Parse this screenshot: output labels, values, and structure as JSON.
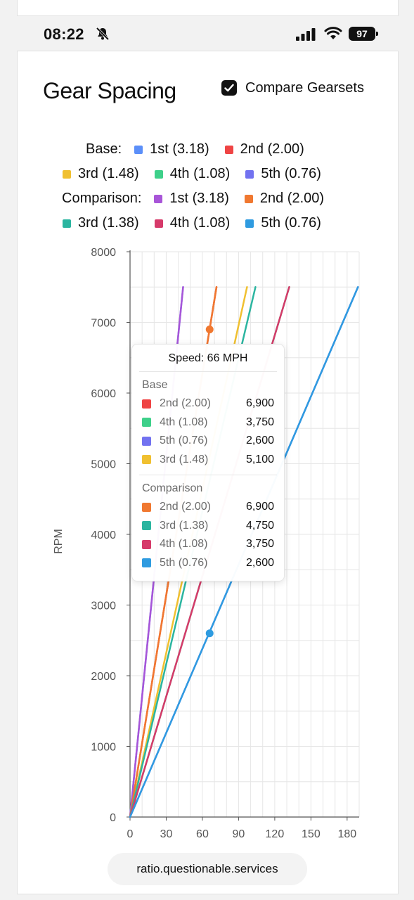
{
  "status": {
    "time": "08:22",
    "battery": "97"
  },
  "title": "Gear Spacing",
  "compare": {
    "label": "Compare Gearsets",
    "checked": true
  },
  "legend": {
    "base_label": "Base:",
    "comparison_label": "Comparison:",
    "base": [
      {
        "label": "1st (3.18)",
        "color": "#5b8ff9"
      },
      {
        "label": "2nd (2.00)",
        "color": "#ef4444"
      },
      {
        "label": "3rd (1.48)",
        "color": "#f0c030"
      },
      {
        "label": "4th (1.08)",
        "color": "#3ed08a"
      },
      {
        "label": "5th (0.76)",
        "color": "#7272f0"
      }
    ],
    "comparison": [
      {
        "label": "1st (3.18)",
        "color": "#a855d8"
      },
      {
        "label": "2nd (2.00)",
        "color": "#f07830"
      },
      {
        "label": "3rd (1.38)",
        "color": "#2bb5a0"
      },
      {
        "label": "4th (1.08)",
        "color": "#d63a6a"
      },
      {
        "label": "5th (0.76)",
        "color": "#2f9be0"
      }
    ]
  },
  "chart_data": {
    "type": "line",
    "ylabel": "RPM",
    "xlabel": "",
    "xlim": [
      0,
      190
    ],
    "ylim": [
      0,
      8000
    ],
    "xticks": [
      "0",
      "30",
      "60",
      "90",
      "120",
      "150",
      "180"
    ],
    "yticks": [
      "0",
      "1000",
      "2000",
      "3000",
      "4000",
      "5000",
      "6000",
      "7000",
      "8000"
    ],
    "redline": 7500,
    "series": [
      {
        "name": "1st (3.18)",
        "group": "base",
        "color": "#5b8ff9",
        "end_mph": 44
      },
      {
        "name": "2nd (2.00)",
        "group": "base",
        "color": "#ef4444",
        "end_mph": 71.7
      },
      {
        "name": "3rd (1.48)",
        "group": "base",
        "color": "#f0c030",
        "end_mph": 97
      },
      {
        "name": "4th (1.08)",
        "group": "base",
        "color": "#3ed08a",
        "end_mph": 132
      },
      {
        "name": "5th (0.76)",
        "group": "base",
        "color": "#7272f0",
        "end_mph": 189
      },
      {
        "name": "1st (3.18)",
        "group": "comparison",
        "color": "#a855d8",
        "end_mph": 44
      },
      {
        "name": "2nd (2.00)",
        "group": "comparison",
        "color": "#f07830",
        "end_mph": 71.7
      },
      {
        "name": "3rd (1.38)",
        "group": "comparison",
        "color": "#2bb5a0",
        "end_mph": 104
      },
      {
        "name": "4th (1.08)",
        "group": "comparison",
        "color": "#d63a6a",
        "end_mph": 132
      },
      {
        "name": "5th (0.76)",
        "group": "comparison",
        "color": "#2f9be0",
        "end_mph": 189
      }
    ],
    "hover": {
      "speed_mph": 66,
      "title": "Speed: 66 MPH",
      "base_label": "Base",
      "comparison_label": "Comparison",
      "base_rows": [
        {
          "label": "2nd (2.00)",
          "value": "6,900",
          "color": "#ef4444"
        },
        {
          "label": "4th (1.08)",
          "value": "3,750",
          "color": "#3ed08a"
        },
        {
          "label": "5th (0.76)",
          "value": "2,600",
          "color": "#7272f0"
        },
        {
          "label": "3rd (1.48)",
          "value": "5,100",
          "color": "#f0c030"
        }
      ],
      "comparison_rows": [
        {
          "label": "2nd (2.00)",
          "value": "6,900",
          "color": "#f07830"
        },
        {
          "label": "3rd (1.38)",
          "value": "4,750",
          "color": "#2bb5a0"
        },
        {
          "label": "4th (1.08)",
          "value": "3,750",
          "color": "#d63a6a"
        },
        {
          "label": "5th (0.76)",
          "value": "2,600",
          "color": "#2f9be0"
        }
      ]
    }
  },
  "url": "ratio.questionable.services"
}
